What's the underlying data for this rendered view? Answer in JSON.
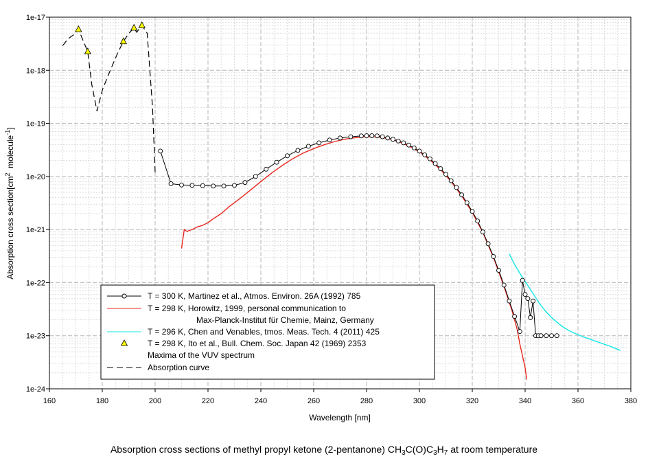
{
  "chart_data": {
    "type": "line",
    "xlabel": "Wavelength [nm]",
    "ylabel": "Absorption cross section[cm² molecule⁻¹]",
    "ylabel_parts": {
      "main": "Absorption cross section[cm",
      "sup1": "2",
      "mid": "  molecule",
      "sup2": "-1",
      "end": "]"
    },
    "xlim": [
      160,
      380
    ],
    "ylim": [
      1e-24,
      1e-17
    ],
    "yscale": "log",
    "grid": true,
    "legend_position": "bottom-left",
    "x_ticks": [
      "160",
      "180",
      "200",
      "220",
      "240",
      "260",
      "280",
      "300",
      "320",
      "340",
      "360",
      "380"
    ],
    "y_ticks": [
      "1e-17",
      "1e-18",
      "1e-19",
      "1e-20",
      "1e-21",
      "1e-22",
      "1e-23",
      "1e-24"
    ],
    "legend": [
      {
        "label": "T = 300 K, Martinez et al., Atmos. Environ. 26A (1992) 785",
        "color": "#000000",
        "marker": "circle"
      },
      {
        "label": "T = 298 K, Horowitz, 1999, personal communication to",
        "label2": "Max-Planck-Institut für Chemie, Mainz, Germany",
        "color": "#e8271e"
      },
      {
        "label": "T = 296 K, Chen and Venables, tmos. Meas. Tech. 4 (2011) 425",
        "color": "#1ee6e6"
      },
      {
        "label": "T = 298 K, Ito et al., Bull. Chem. Soc. Japan 42 (1969) 2353",
        "label2": "Maxima of the VUV spectrum",
        "color": "#ffff00",
        "marker": "triangle"
      },
      {
        "label": "Absorption curve",
        "color": "#000000",
        "dash": true
      }
    ],
    "series": [
      {
        "name": "T = 300 K, Martinez et al., Atmos. Environ. 26A (1992) 785",
        "color": "#000000",
        "points": [
          [
            202,
            3e-20
          ],
          [
            206,
            7.3e-21
          ],
          [
            210,
            6.9e-21
          ],
          [
            214,
            6.8e-21
          ],
          [
            218,
            6.7e-21
          ],
          [
            222,
            6.6e-21
          ],
          [
            226,
            6.6e-21
          ],
          [
            230,
            6.8e-21
          ],
          [
            234,
            7.7e-21
          ],
          [
            238,
            1e-20
          ],
          [
            242,
            1.37e-20
          ],
          [
            246,
            1.85e-20
          ],
          [
            250,
            2.45e-20
          ],
          [
            254,
            3.1e-20
          ],
          [
            258,
            3.7e-20
          ],
          [
            262,
            4.3e-20
          ],
          [
            266,
            4.85e-20
          ],
          [
            270,
            5.3e-20
          ],
          [
            274,
            5.6e-20
          ],
          [
            278,
            5.8e-20
          ],
          [
            280,
            5.85e-20
          ],
          [
            282,
            5.85e-20
          ],
          [
            284,
            5.8e-20
          ],
          [
            286,
            5.6e-20
          ],
          [
            288,
            5.3e-20
          ],
          [
            290,
            5e-20
          ],
          [
            292,
            4.65e-20
          ],
          [
            294,
            4.3e-20
          ],
          [
            296,
            3.9e-20
          ],
          [
            298,
            3.45e-20
          ],
          [
            300,
            3e-20
          ],
          [
            302,
            2.55e-20
          ],
          [
            304,
            2.15e-20
          ],
          [
            306,
            1.75e-20
          ],
          [
            308,
            1.4e-20
          ],
          [
            310,
            1.1e-20
          ],
          [
            312,
            8.3e-21
          ],
          [
            314,
            6.2e-21
          ],
          [
            316,
            4.5e-21
          ],
          [
            318,
            3.2e-21
          ],
          [
            320,
            2.2e-21
          ],
          [
            322,
            1.45e-21
          ],
          [
            324,
            9e-22
          ],
          [
            326,
            5.4e-22
          ],
          [
            328,
            3.1e-22
          ],
          [
            330,
            1.7e-22
          ],
          [
            332,
            9e-23
          ],
          [
            334,
            4.5e-23
          ],
          [
            336,
            2.3e-23
          ],
          [
            338,
            1.2e-23
          ],
          [
            339,
            1.1e-22
          ],
          [
            340,
            6e-23
          ],
          [
            341,
            5e-23
          ],
          [
            342,
            2.2e-23
          ],
          [
            343,
            4.5e-23
          ],
          [
            344,
            1e-23
          ],
          [
            345,
            1e-23
          ],
          [
            346,
            1e-23
          ],
          [
            348,
            1e-23
          ],
          [
            350,
            1e-23
          ],
          [
            352,
            1e-23
          ]
        ]
      },
      {
        "name": "T = 298 K, Horowitz, 1999, personal communication to Max-Planck-Institut für Chemie, Mainz, Germany",
        "color": "#e8271e",
        "points": [
          [
            210,
            4.4e-22
          ],
          [
            211,
            1e-21
          ],
          [
            212,
            9.2e-22
          ],
          [
            214,
            1e-21
          ],
          [
            216,
            1.12e-21
          ],
          [
            218,
            1.2e-21
          ],
          [
            220,
            1.35e-21
          ],
          [
            222,
            1.6e-21
          ],
          [
            225,
            2e-21
          ],
          [
            228,
            2.7e-21
          ],
          [
            232,
            3.8e-21
          ],
          [
            236,
            5.5e-21
          ],
          [
            240,
            8e-21
          ],
          [
            244,
            1.15e-20
          ],
          [
            248,
            1.6e-20
          ],
          [
            252,
            2.15e-20
          ],
          [
            256,
            2.75e-20
          ],
          [
            260,
            3.35e-20
          ],
          [
            264,
            3.95e-20
          ],
          [
            268,
            4.55e-20
          ],
          [
            272,
            5.05e-20
          ],
          [
            276,
            5.4e-20
          ],
          [
            280,
            5.6e-20
          ],
          [
            284,
            5.55e-20
          ],
          [
            288,
            5.2e-20
          ],
          [
            292,
            4.55e-20
          ],
          [
            296,
            3.75e-20
          ],
          [
            300,
            2.9e-20
          ],
          [
            304,
            2.05e-20
          ],
          [
            308,
            1.35e-20
          ],
          [
            312,
            8e-21
          ],
          [
            316,
            4.3e-21
          ],
          [
            320,
            2.1e-21
          ],
          [
            324,
            8.8e-22
          ],
          [
            328,
            3e-22
          ],
          [
            332,
            8.5e-23
          ],
          [
            335,
            3e-23
          ],
          [
            337,
            1.3e-23
          ],
          [
            338,
            7e-24
          ],
          [
            339,
            4.2e-24
          ],
          [
            340,
            2.5e-24
          ],
          [
            340.6,
            1.5e-24
          ]
        ]
      },
      {
        "name": "T = 296 K, Chen and Venables, tmos. Meas. Tech. 4 (2011) 425",
        "color": "#1ee6e6",
        "points": [
          [
            334,
            3.5e-22
          ],
          [
            336,
            2.2e-22
          ],
          [
            338,
            1.5e-22
          ],
          [
            340,
            1.05e-22
          ],
          [
            342,
            7.5e-23
          ],
          [
            344,
            5.2e-23
          ],
          [
            346,
            3.7e-23
          ],
          [
            348,
            2.8e-23
          ],
          [
            350,
            2.2e-23
          ],
          [
            352,
            1.8e-23
          ],
          [
            354,
            1.5e-23
          ],
          [
            356,
            1.3e-23
          ],
          [
            358,
            1.15e-23
          ],
          [
            360,
            1.05e-23
          ],
          [
            362,
            9.5e-24
          ],
          [
            364,
            8.8e-24
          ],
          [
            366,
            8.1e-24
          ],
          [
            368,
            7.5e-24
          ],
          [
            370,
            6.9e-24
          ],
          [
            372,
            6.4e-24
          ],
          [
            374,
            5.8e-24
          ],
          [
            376,
            5.3e-24
          ]
        ]
      },
      {
        "name": "T = 298 K, Ito et al., Bull. Chem. Soc. Japan 42 (1969) 2353",
        "color": "#ffff00",
        "points": [
          [
            171,
            5.9e-18
          ],
          [
            174.5,
            2.25e-18
          ],
          [
            188,
            3.5e-18
          ],
          [
            192,
            6.3e-18
          ],
          [
            195,
            7e-18
          ]
        ]
      },
      {
        "name": "Absorption curve",
        "color": "#000000",
        "points": [
          [
            165,
            2.9e-18
          ],
          [
            167,
            3.9e-18
          ],
          [
            169,
            4.6e-18
          ],
          [
            171,
            5.9e-18
          ],
          [
            173,
            3.4e-18
          ],
          [
            174.5,
            2.25e-18
          ],
          [
            176,
            5.5e-19
          ],
          [
            178,
            1.7e-19
          ],
          [
            180,
            4.2e-19
          ],
          [
            182,
            7.5e-19
          ],
          [
            184,
            1.3e-18
          ],
          [
            186,
            2.2e-18
          ],
          [
            188,
            3.5e-18
          ],
          [
            190,
            4.9e-18
          ],
          [
            192,
            6.3e-18
          ],
          [
            193,
            5.2e-18
          ],
          [
            195,
            7e-18
          ],
          [
            197,
            5e-18
          ],
          [
            198,
            1e-18
          ],
          [
            199,
            2e-19
          ],
          [
            200,
            1.2e-20
          ]
        ]
      }
    ]
  },
  "caption": {
    "prefix": "Absorption cross sections of methyl propyl ketone (2-pentanone) CH",
    "s1": "3",
    "m1": "C(O)C",
    "s2": "3",
    "m2": "H",
    "s3": "7",
    "suffix": " at room temperature"
  }
}
